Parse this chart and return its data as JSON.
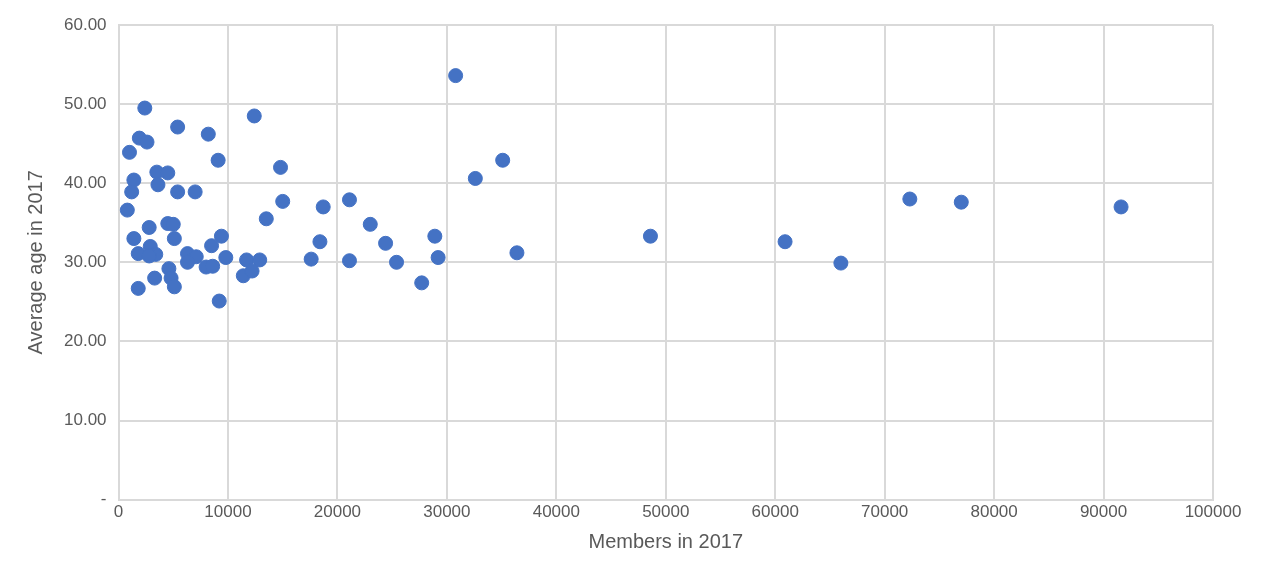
{
  "chart_data": {
    "type": "scatter",
    "xlabel": "Members in 2017",
    "ylabel": "Average age in 2017",
    "x": [
      2400,
      5400,
      8200,
      1900,
      2600,
      1000,
      9100,
      12400,
      14800,
      3500,
      4500,
      1400,
      3600,
      1200,
      5400,
      7000,
      15000,
      800,
      13500,
      2800,
      4500,
      5000,
      1400,
      5100,
      9400,
      2900,
      8500,
      1800,
      3400,
      6300,
      2800,
      7100,
      9800,
      11700,
      12900,
      17600,
      6300,
      8000,
      8600,
      4600,
      11400,
      12200,
      3300,
      4800,
      5100,
      1800,
      9200,
      18700,
      21100,
      23000,
      24400,
      18400,
      21100,
      25400,
      27700,
      30800,
      35100,
      32600,
      36400,
      28900,
      29200,
      48600,
      60900,
      66000,
      72300,
      77000,
      91600
    ],
    "values": [
      49.5,
      47.1,
      46.2,
      45.7,
      45.2,
      43.9,
      42.9,
      48.5,
      42.0,
      41.4,
      41.3,
      40.4,
      39.8,
      38.9,
      38.9,
      38.9,
      37.7,
      36.6,
      35.5,
      34.4,
      34.9,
      34.8,
      33.0,
      33.0,
      33.3,
      32.0,
      32.1,
      31.1,
      31.0,
      31.1,
      30.8,
      30.7,
      30.6,
      30.3,
      30.3,
      30.4,
      30.0,
      29.4,
      29.5,
      29.2,
      28.3,
      28.9,
      28.0,
      28.0,
      26.9,
      26.7,
      25.1,
      37.0,
      37.9,
      34.8,
      32.4,
      32.6,
      30.2,
      30.0,
      27.4,
      53.6,
      42.9,
      40.6,
      31.2,
      33.3,
      30.6,
      33.3,
      32.6,
      29.9,
      38.0,
      37.6,
      37.0
    ],
    "color": "#4472c4",
    "marker": "circle",
    "grid": true,
    "xlim": [
      0,
      100000
    ],
    "xticks": [
      0,
      10000,
      20000,
      30000,
      40000,
      50000,
      60000,
      70000,
      80000,
      90000,
      100000
    ],
    "ylim": [
      0,
      60
    ],
    "yticks": [
      {
        "value": 0,
        "label": "-"
      },
      {
        "value": 10,
        "label": "10.00"
      },
      {
        "value": 20,
        "label": "20.00"
      },
      {
        "value": 30,
        "label": "30.00"
      },
      {
        "value": 40,
        "label": "40.00"
      },
      {
        "value": 50,
        "label": "50.00"
      },
      {
        "value": 60,
        "label": "60.00"
      }
    ]
  }
}
